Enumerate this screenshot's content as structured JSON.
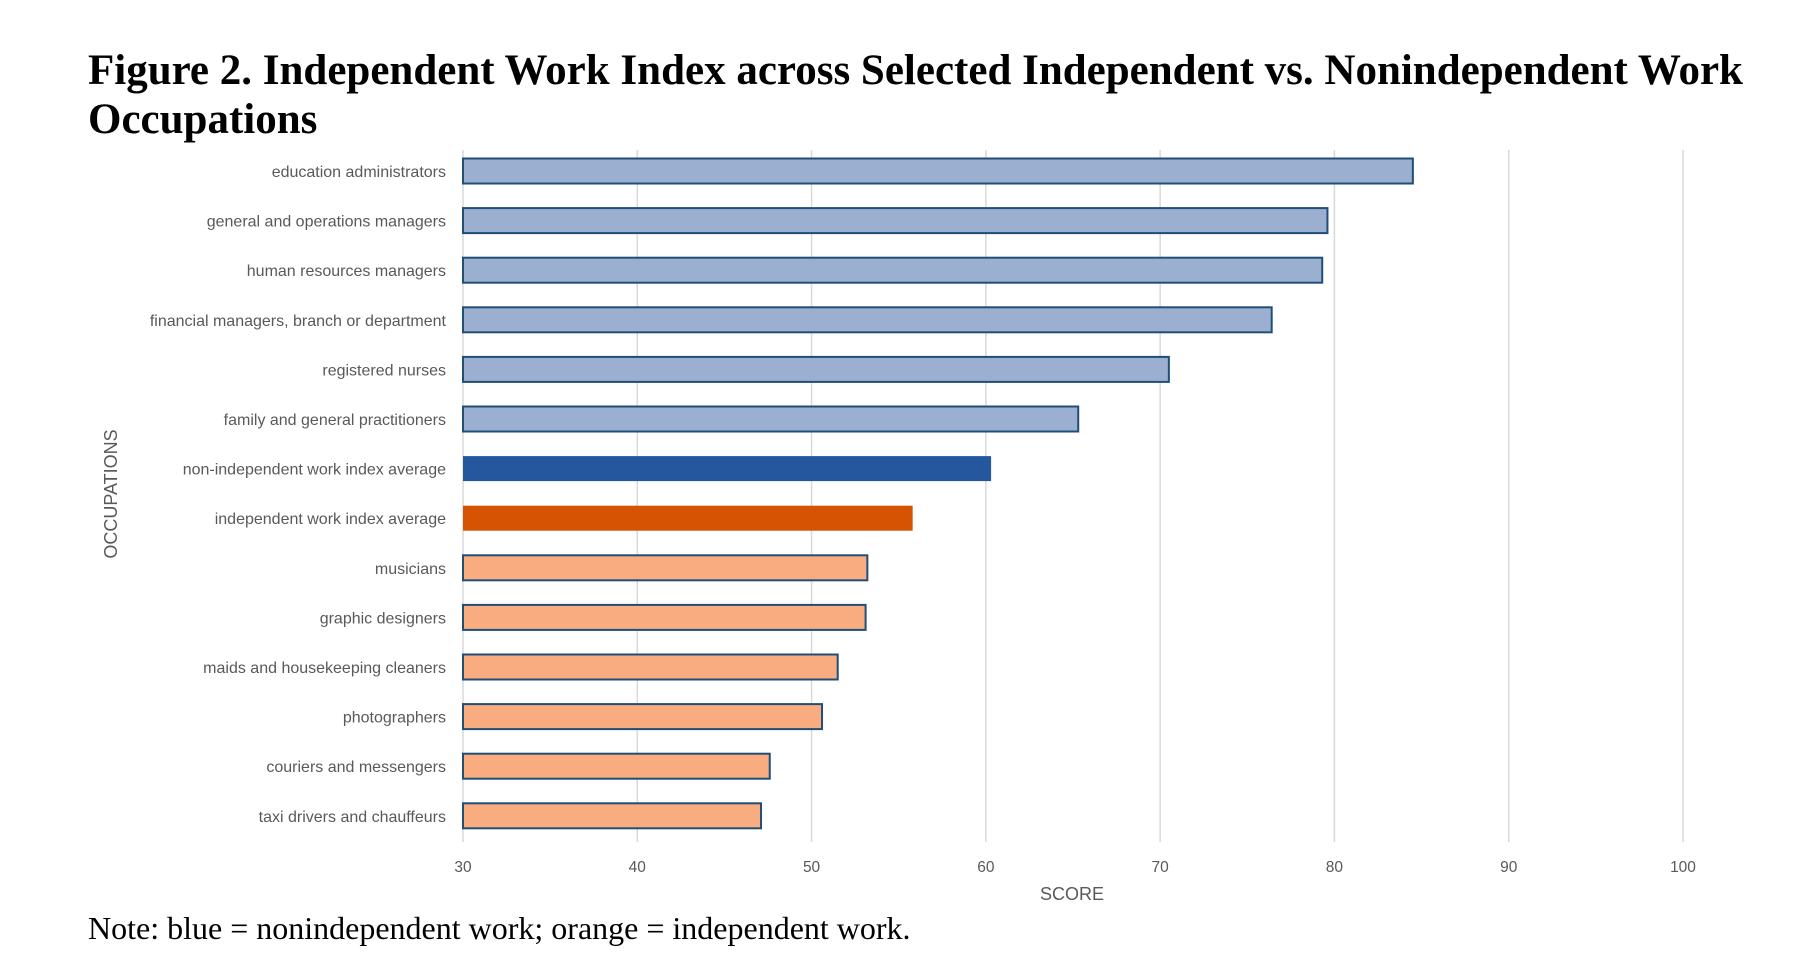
{
  "title": "Figure 2. Independent Work Index across Selected Independent vs. Nonindependent Work Occupations",
  "note": "Note: blue = nonindependent work; orange = independent work.",
  "colors": {
    "nonindependent": "#9bb0d1",
    "nonindependent_average": "#24579d",
    "independent": "#f8ac7f",
    "independent_average": "#d65303",
    "bar_outline": "#1f4e79",
    "gridline": "#d9d9d9"
  },
  "chart_data": {
    "type": "bar",
    "orientation": "horizontal",
    "xlabel": "SCORE",
    "ylabel": "OCCUPATIONS",
    "xlim": [
      30,
      100
    ],
    "xticks": [
      "30",
      "40",
      "50",
      "60",
      "70",
      "80",
      "90",
      "100"
    ],
    "grid": true,
    "categories": [
      "education administrators",
      "general and operations managers",
      "human resources managers",
      "financial managers, branch or department",
      "registered nurses",
      "family and general practitioners",
      "non-independent work index average",
      "independent work index average",
      "musicians",
      "graphic designers",
      "maids and housekeeping cleaners",
      "photographers",
      "couriers and messengers",
      "taxi drivers and chauffeurs"
    ],
    "values": [
      84.5,
      79.6,
      79.3,
      76.4,
      70.5,
      65.3,
      60.3,
      55.8,
      53.2,
      53.1,
      51.5,
      50.6,
      47.6,
      47.1
    ],
    "groups": [
      "nonindependent",
      "nonindependent",
      "nonindependent",
      "nonindependent",
      "nonindependent",
      "nonindependent",
      "nonindependent_average",
      "independent_average",
      "independent",
      "independent",
      "independent",
      "independent",
      "independent",
      "independent"
    ]
  }
}
